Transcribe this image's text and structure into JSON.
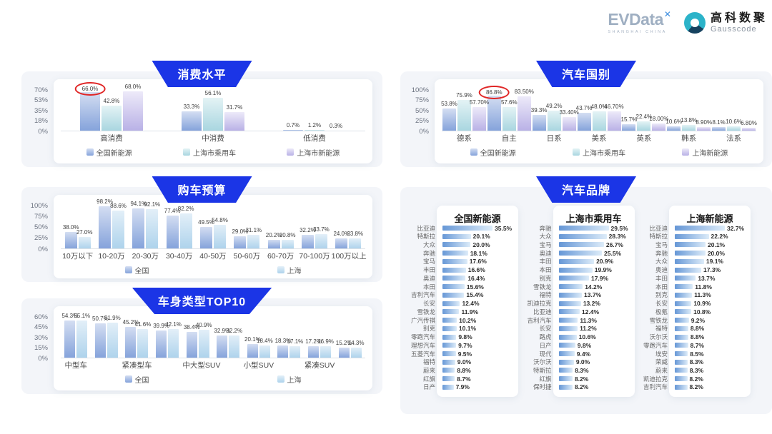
{
  "header": {
    "evdata": "EVData",
    "evdata_x": "✕",
    "evdata_sub": "SHANGHAI CHINA",
    "gausscode_cn": "高科数聚",
    "gausscode_en": "Gausscode"
  },
  "colors": {
    "banner": "#1b35e6",
    "circle_red": "#e02626",
    "brand_bar": [
      "#6697d6",
      "#ddecf9"
    ],
    "palettes": {
      "blue": [
        "#d4def2",
        "#85a3db"
      ],
      "teal": [
        "#e4f3f5",
        "#a9d6e0"
      ],
      "purple": [
        "#edeaf9",
        "#b9b1e6"
      ],
      "lightblue": [
        "#e3eff8",
        "#aed3ec"
      ]
    }
  },
  "chart_data": "see charts + brand_section below",
  "charts": [
    {
      "id": "consumption",
      "title": "消费水平",
      "type": "bar",
      "ymax": 70,
      "yticks": [
        "70%",
        "53%",
        "35%",
        "18%",
        "0%"
      ],
      "categories": [
        "高消费",
        "中消费",
        "低消费"
      ],
      "series": [
        {
          "name": "全国新能源",
          "palette": "blue",
          "labels": [
            "66.0%",
            "33.3%",
            "0.7%"
          ]
        },
        {
          "name": "上海市乘用车",
          "palette": "teal",
          "labels": [
            "42.8%",
            "56.1%",
            "1.2%"
          ]
        },
        {
          "name": "上海市新能源",
          "palette": "purple",
          "labels": [
            "68.0%",
            "31.7%",
            "0.3%"
          ]
        }
      ],
      "circle": {
        "series": 0,
        "cat": 0
      }
    },
    {
      "id": "budget",
      "title": "购车预算",
      "type": "bar",
      "ymax": 100,
      "yticks": [
        "100%",
        "75%",
        "50%",
        "25%",
        "0%"
      ],
      "categories": [
        "10万以下",
        "10-20万",
        "20-30万",
        "30-40万",
        "40-50万",
        "50-60万",
        "60-70万",
        "70-100万",
        "100万以上"
      ],
      "series": [
        {
          "name": "全国",
          "palette": "blue",
          "labels": [
            "38.0%",
            "98.2%",
            "94.1%",
            "77.4%",
            "49.5%",
            "29.0%",
            "20.2%",
            "32.2%",
            "24.0%"
          ]
        },
        {
          "name": "上海",
          "palette": "lightblue",
          "labels": [
            "27.0%",
            "88.6%",
            "92.1%",
            "82.2%",
            "54.8%",
            "31.1%",
            "20.8%",
            "33.7%",
            "23.8%"
          ]
        }
      ]
    },
    {
      "id": "bodytype",
      "title": "车身类型TOP10",
      "type": "bar",
      "ymax": 60,
      "yticks": [
        "60%",
        "45%",
        "30%",
        "15%",
        "0%"
      ],
      "categories": [
        "中型车",
        "",
        "紧凑型车",
        "",
        "中大型SUV",
        "",
        "小型SUV",
        "",
        "紧凑SUV",
        ""
      ],
      "series": [
        {
          "name": "全国",
          "palette": "blue",
          "labels": [
            "54.3%",
            "50.7%",
            "45.2%",
            "39.9%",
            "38.4%",
            "32.9%",
            "20.1%",
            "18.3%",
            "17.2%",
            "15.2%"
          ]
        },
        {
          "name": "上海",
          "palette": "lightblue",
          "labels": [
            "55.1%",
            "51.9%",
            "41.6%",
            "42.1%",
            "40.9%",
            "32.2%",
            "18.4%",
            "17.1%",
            "16.9%",
            "14.3%"
          ]
        }
      ]
    },
    {
      "id": "country",
      "title": "汽车国别",
      "type": "bar",
      "ymax": 100,
      "yticks": [
        "100%",
        "75%",
        "50%",
        "25%",
        "0%"
      ],
      "categories": [
        "德系",
        "自主",
        "日系",
        "美系",
        "英系",
        "韩系",
        "法系"
      ],
      "series": [
        {
          "name": "全国新能源",
          "palette": "blue",
          "labels": [
            "53.8%",
            "86.8%",
            "39.3%",
            "43.7%",
            "15.7%",
            "10.6%",
            "8.1%"
          ]
        },
        {
          "name": "上海市乘用车",
          "palette": "teal",
          "labels": [
            "75.9%",
            "57.6%",
            "49.2%",
            "48.0%",
            "22.4%",
            "13.8%",
            "10.6%"
          ]
        },
        {
          "name": "上海新能源",
          "palette": "purple",
          "labels": [
            "57.70%",
            "83.50%",
            "33.40%",
            "46.70%",
            "18.00%",
            "8.90%",
            "6.80%"
          ]
        }
      ],
      "circle": {
        "series": 0,
        "cat": 1
      }
    }
  ],
  "brand_section": {
    "title": "汽车品牌",
    "panels": [
      {
        "title": "全国新能源",
        "rows": [
          {
            "label": "比亚迪",
            "value": "35.5%"
          },
          {
            "label": "特斯拉",
            "value": "20.1%"
          },
          {
            "label": "大众",
            "value": "20.0%"
          },
          {
            "label": "奔驰",
            "value": "18.1%"
          },
          {
            "label": "宝马",
            "value": "17.6%"
          },
          {
            "label": "丰田",
            "value": "16.6%"
          },
          {
            "label": "奥迪",
            "value": "16.4%"
          },
          {
            "label": "本田",
            "value": "15.6%"
          },
          {
            "label": "吉利汽车",
            "value": "15.4%"
          },
          {
            "label": "长安",
            "value": "12.4%"
          },
          {
            "label": "雪铁龙",
            "value": "11.9%"
          },
          {
            "label": "广汽传祺",
            "value": "10.2%"
          },
          {
            "label": "别克",
            "value": "10.1%"
          },
          {
            "label": "零跑汽车",
            "value": "9.8%"
          },
          {
            "label": "理想汽车",
            "value": "9.7%"
          },
          {
            "label": "五菱汽车",
            "value": "9.5%"
          },
          {
            "label": "福特",
            "value": "9.0%"
          },
          {
            "label": "蔚来",
            "value": "8.8%"
          },
          {
            "label": "红旗",
            "value": "8.7%"
          },
          {
            "label": "日产",
            "value": "7.9%"
          }
        ]
      },
      {
        "title": "上海市乘用车",
        "rows": [
          {
            "label": "奔驰",
            "value": "29.5%"
          },
          {
            "label": "大众",
            "value": "28.3%"
          },
          {
            "label": "宝马",
            "value": "26.7%"
          },
          {
            "label": "奥迪",
            "value": "25.5%"
          },
          {
            "label": "丰田",
            "value": "20.9%"
          },
          {
            "label": "本田",
            "value": "19.9%"
          },
          {
            "label": "别克",
            "value": "17.9%"
          },
          {
            "label": "雪铁龙",
            "value": "14.2%"
          },
          {
            "label": "福特",
            "value": "13.7%"
          },
          {
            "label": "凯迪拉克",
            "value": "13.2%"
          },
          {
            "label": "比亚迪",
            "value": "12.4%"
          },
          {
            "label": "吉利汽车",
            "value": "11.3%"
          },
          {
            "label": "长安",
            "value": "11.2%"
          },
          {
            "label": "路虎",
            "value": "10.6%"
          },
          {
            "label": "日产",
            "value": "9.8%"
          },
          {
            "label": "现代",
            "value": "9.4%"
          },
          {
            "label": "沃尔沃",
            "value": "9.0%"
          },
          {
            "label": "特斯拉",
            "value": "8.3%"
          },
          {
            "label": "红旗",
            "value": "8.2%"
          },
          {
            "label": "保时捷",
            "value": "8.2%"
          }
        ]
      },
      {
        "title": "上海新能源",
        "rows": [
          {
            "label": "比亚迪",
            "value": "32.7%"
          },
          {
            "label": "特斯拉",
            "value": "22.2%"
          },
          {
            "label": "宝马",
            "value": "20.1%"
          },
          {
            "label": "奔驰",
            "value": "20.0%"
          },
          {
            "label": "大众",
            "value": "19.1%"
          },
          {
            "label": "奥迪",
            "value": "17.3%"
          },
          {
            "label": "丰田",
            "value": "13.7%"
          },
          {
            "label": "本田",
            "value": "11.8%"
          },
          {
            "label": "别克",
            "value": "11.3%"
          },
          {
            "label": "长安",
            "value": "10.9%"
          },
          {
            "label": "极氪",
            "value": "10.8%"
          },
          {
            "label": "雪铁龙",
            "value": "9.2%"
          },
          {
            "label": "福特",
            "value": "8.8%"
          },
          {
            "label": "沃尔沃",
            "value": "8.8%"
          },
          {
            "label": "零跑汽车",
            "value": "8.7%"
          },
          {
            "label": "埃安",
            "value": "8.5%"
          },
          {
            "label": "荣威",
            "value": "8.3%"
          },
          {
            "label": "蔚来",
            "value": "8.3%"
          },
          {
            "label": "凯迪拉克",
            "value": "8.2%"
          },
          {
            "label": "吉利汽车",
            "value": "8.2%"
          }
        ]
      }
    ]
  }
}
